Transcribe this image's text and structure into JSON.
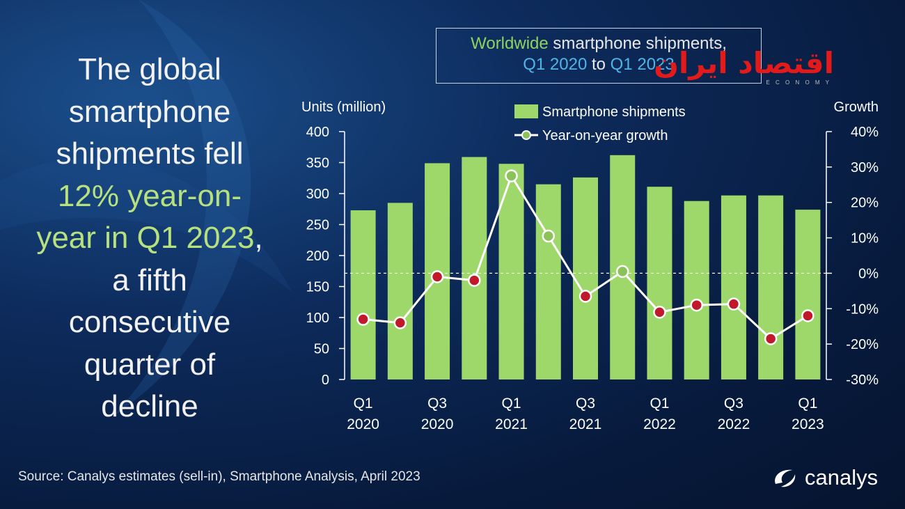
{
  "headline": {
    "line1": "The global",
    "line2": "smartphone",
    "line3": "shipments  fell",
    "line4": "12% year-on-",
    "line5": "year in Q1 2023",
    "line5_comma": ",",
    "line6": "a fifth",
    "line7": "consecutive",
    "line8": "quarter of",
    "line9": "decline"
  },
  "title": {
    "part1": "Worldwide",
    "part2": " smartphone shipments,",
    "part3": "Q1 2020",
    "part4": " to ",
    "part5": "Q1 2023"
  },
  "source": "Source:  Canalys estimates (sell-in), Smartphone Analysis, April 2023",
  "brand": {
    "name": "canalys",
    "icon": "canalys-logo-icon"
  },
  "watermark": {
    "text": "اقتصاد ایران",
    "sub": "E C O N O M Y"
  },
  "colors": {
    "bar": "#9fd86a",
    "line": "#ffffff",
    "marker_red": "#c0192b",
    "marker_green": "#8bc25a",
    "accent_green": "#8fd35e",
    "accent_blue": "#4fb4e6"
  },
  "chart_data": {
    "type": "bar",
    "ylabel": "Units (million)",
    "y2label": "Growth",
    "ylim": [
      0,
      400
    ],
    "y2lim": [
      -30,
      40
    ],
    "y_ticks": [
      "0",
      "50",
      "100",
      "150",
      "200",
      "250",
      "300",
      "350",
      "400"
    ],
    "y2_ticks": [
      "-30%",
      "-20%",
      "-10%",
      "0%",
      "10%",
      "20%",
      "30%",
      "40%"
    ],
    "categories": [
      "Q1 2020",
      "Q2 2020",
      "Q3 2020",
      "Q4 2020",
      "Q1 2021",
      "Q2 2021",
      "Q3 2021",
      "Q4 2021",
      "Q1 2022",
      "Q2 2022",
      "Q3 2022",
      "Q4 2022",
      "Q1 2023"
    ],
    "x_tick_labels": [
      {
        "index": 0,
        "top": "Q1",
        "bottom": "2020"
      },
      {
        "index": 2,
        "top": "Q3",
        "bottom": "2020"
      },
      {
        "index": 4,
        "top": "Q1",
        "bottom": "2021"
      },
      {
        "index": 6,
        "top": "Q3",
        "bottom": "2021"
      },
      {
        "index": 8,
        "top": "Q1",
        "bottom": "2022"
      },
      {
        "index": 10,
        "top": "Q3",
        "bottom": "2022"
      },
      {
        "index": 12,
        "top": "Q1",
        "bottom": "2023"
      }
    ],
    "legend_placement": "top-center",
    "series": [
      {
        "name": "Smartphone shipments",
        "type": "bar",
        "axis": "left",
        "values": [
          273,
          285,
          349,
          359,
          348,
          315,
          326,
          362,
          311,
          288,
          297,
          297,
          274
        ]
      },
      {
        "name": "Year-on-year growth",
        "type": "line",
        "axis": "right",
        "values": [
          -13,
          -14,
          -1,
          -2,
          27.5,
          10.5,
          -6.5,
          0.5,
          -11,
          -9,
          -8.7,
          -18.5,
          -12
        ]
      }
    ],
    "zero_line": "dashed"
  }
}
